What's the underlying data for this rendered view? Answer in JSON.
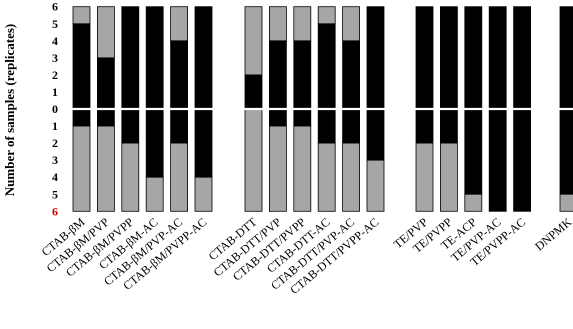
{
  "chart_data": {
    "type": "bar",
    "ylabel": "Number of samples (replicates)",
    "ylim_top": [
      0,
      6
    ],
    "ylim_bottom": [
      0,
      6
    ],
    "y_tick_labels_top": [
      "0",
      "1",
      "2",
      "3",
      "4",
      "5",
      "6"
    ],
    "y_tick_labels_bottom": [
      "1",
      "2",
      "3",
      "4",
      "5",
      "6"
    ],
    "y_tick_colors": {
      "top": "#000000",
      "bottom_1_to_5": "#000000",
      "bottom_6": "#cc0000"
    },
    "colors": {
      "black": "#000000",
      "gray": "#a6a6a6"
    },
    "groups": [
      {
        "categories": [
          "CTAB-βM",
          "CTAB-βM/PVP",
          "CTAB-βM/PVPP",
          "CTAB-βM-AC",
          "CTAB-βM/PVP-AC",
          "CTAB-βM/PVPP-AC"
        ]
      },
      {
        "categories": [
          "CTAB-DTT",
          "CTAB-DTT/PVP",
          "CTAB-DTT/PVPP",
          "CTAB-DTT-AC",
          "CTAB-DTT/PVP-AC",
          "CTAB-DTT/PVPP-AC"
        ]
      },
      {
        "categories": [
          "TE/PVP",
          "TE/PVPP",
          "TE-ACP",
          "TE/PVP-AC",
          "TE/PVPP-AC"
        ]
      },
      {
        "categories": [
          "DNPMK"
        ]
      }
    ],
    "series": {
      "top_black": [
        5,
        3,
        6,
        6,
        4,
        6,
        2,
        4,
        4,
        5,
        4,
        6,
        6,
        6,
        6,
        6,
        6,
        6
      ],
      "top_gray": [
        1,
        3,
        0,
        0,
        2,
        0,
        4,
        2,
        2,
        1,
        2,
        0,
        0,
        0,
        0,
        0,
        0,
        0
      ],
      "bottom_black": [
        1,
        1,
        2,
        4,
        2,
        4,
        0,
        1,
        1,
        2,
        2,
        3,
        2,
        2,
        5,
        6,
        6,
        5
      ],
      "bottom_gray": [
        5,
        5,
        4,
        2,
        4,
        2,
        6,
        5,
        5,
        4,
        4,
        3,
        4,
        4,
        1,
        0,
        0,
        1
      ]
    }
  }
}
